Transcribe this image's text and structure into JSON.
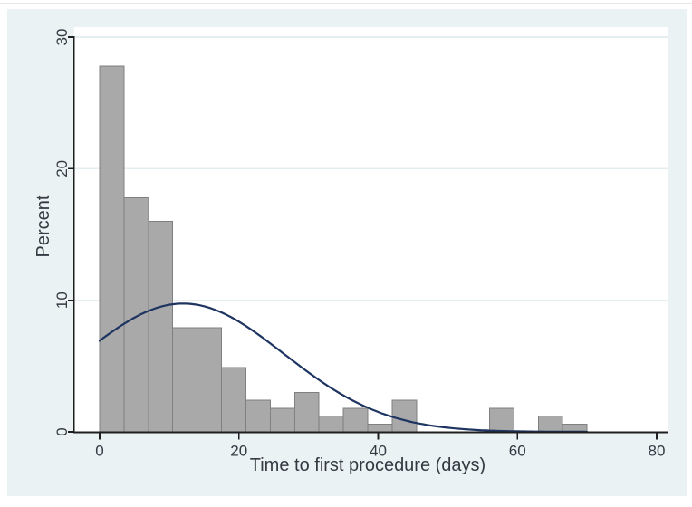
{
  "window": {
    "description": "Stata graph window showing a histogram with fitted normal density overlay"
  },
  "colors": {
    "figure_background": "#eaf2f3",
    "plot_background": "#ffffff",
    "gridline": "#e4eef0",
    "bar_fill": "#a9a9a9",
    "bar_outline": "#808080",
    "curve": "#1e3461",
    "axis": "#1f1f1f",
    "text": "#343a42"
  },
  "chart_data": {
    "type": "bar",
    "variant": "histogram-with-normal-curve-overlay",
    "title": "",
    "xlabel": "Time to first procedure (days)",
    "ylabel": "Percent",
    "x_ticks": [
      0,
      20,
      40,
      60,
      80
    ],
    "y_ticks": [
      0,
      10,
      20,
      30
    ],
    "xlim": [
      0,
      81.6
    ],
    "ylim": [
      0,
      30.7
    ],
    "grid": true,
    "legend": "none",
    "bin_width_days": 3.5,
    "bins": [
      {
        "start": 0,
        "percent": 27.8
      },
      {
        "start": 3.5,
        "percent": 17.8
      },
      {
        "start": 7,
        "percent": 16.0
      },
      {
        "start": 10.5,
        "percent": 7.9
      },
      {
        "start": 14,
        "percent": 7.9
      },
      {
        "start": 17.5,
        "percent": 4.9
      },
      {
        "start": 21,
        "percent": 2.4
      },
      {
        "start": 24.5,
        "percent": 1.8
      },
      {
        "start": 28,
        "percent": 3.0
      },
      {
        "start": 31.5,
        "percent": 1.2
      },
      {
        "start": 35,
        "percent": 1.8
      },
      {
        "start": 38.5,
        "percent": 0.6
      },
      {
        "start": 42,
        "percent": 2.4
      },
      {
        "start": 45.5,
        "percent": 0
      },
      {
        "start": 49,
        "percent": 0
      },
      {
        "start": 52.5,
        "percent": 0
      },
      {
        "start": 56,
        "percent": 1.8
      },
      {
        "start": 59.5,
        "percent": 0
      },
      {
        "start": 63,
        "percent": 1.2
      },
      {
        "start": 66.5,
        "percent": 0.6
      }
    ],
    "normal_curve": {
      "mean": 12,
      "sd": 14.5,
      "peak_percent": 9.75,
      "x_start": 0,
      "x_end": 70
    }
  }
}
